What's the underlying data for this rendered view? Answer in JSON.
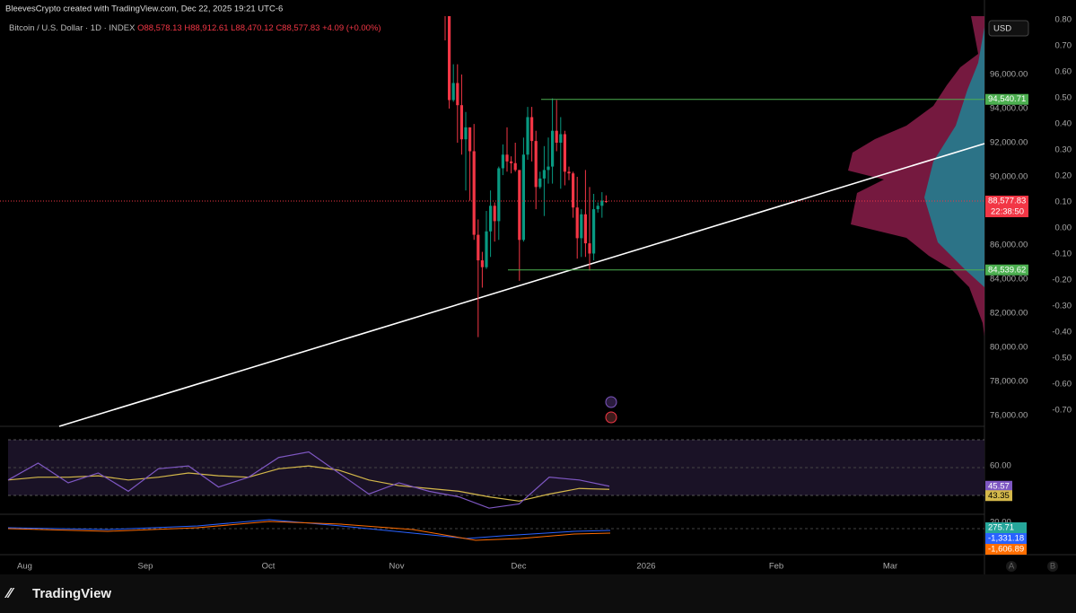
{
  "header": {
    "credit": "BleevesCrypto created with TradingView.com, Dec 22, 2025 19:21 UTC-6",
    "symbol": "Bitcoin / U.S. Dollar · 1D · INDEX",
    "open": "O88,578.13",
    "high": "H88,912.61",
    "low": "L88,470.12",
    "close": "C88,577.83",
    "change": "+4.09 (+0.00%)"
  },
  "currency_button": "USD",
  "footer": {
    "brand": "TradingView",
    "scale_a": "A",
    "scale_b": "B"
  },
  "chart_data": {
    "type": "candlestick",
    "ylim": [
      75368,
      99421
    ],
    "yticks": [
      {
        "value": 96000,
        "label": "96,000.00"
      },
      {
        "value": 94000,
        "label": "94,000.00"
      },
      {
        "value": 92000,
        "label": "92,000.00"
      },
      {
        "value": 90000,
        "label": "90,000.00"
      },
      {
        "value": 88000,
        "label": "88,000.00"
      },
      {
        "value": 86000,
        "label": "86,000.00"
      },
      {
        "value": 84000,
        "label": "84,000.00"
      },
      {
        "value": 82000,
        "label": "82,000.00"
      },
      {
        "value": 80000,
        "label": "80,000.00"
      },
      {
        "value": 78000,
        "label": "78,000.00"
      },
      {
        "value": 76000,
        "label": "76,000.00"
      }
    ],
    "y2lim": [
      0.814,
      -0.762
    ],
    "y2ticks": [
      {
        "value": 0.8,
        "label": "0.80"
      },
      {
        "value": 0.7,
        "label": "0.70"
      },
      {
        "value": 0.6,
        "label": "0.60"
      },
      {
        "value": 0.5,
        "label": "0.50"
      },
      {
        "value": 0.4,
        "label": "0.40"
      },
      {
        "value": 0.3,
        "label": "0.30"
      },
      {
        "value": 0.2,
        "label": "0.20"
      },
      {
        "value": 0.1,
        "label": "0.10"
      },
      {
        "value": 0,
        "label": "0.00"
      },
      {
        "value": -0.1,
        "label": "-0.10"
      },
      {
        "value": -0.2,
        "label": "-0.20"
      },
      {
        "value": -0.3,
        "label": "-0.30"
      },
      {
        "value": -0.4,
        "label": "-0.40"
      },
      {
        "value": -0.5,
        "label": "-0.50"
      },
      {
        "value": -0.6,
        "label": "-0.60"
      },
      {
        "value": -0.7,
        "label": "-0.70"
      }
    ],
    "x_labels": [
      "Aug",
      "Sep",
      "Oct",
      "Nov",
      "Dec",
      "2026",
      "Feb",
      "Mar"
    ],
    "open": [
      101600,
      99700,
      94500,
      95500,
      94200,
      92200,
      92900,
      91500,
      86600,
      85100,
      84700,
      86800,
      88300,
      87400,
      90500,
      91300,
      90900,
      90800,
      90400,
      86300,
      91300,
      93500,
      92100,
      89400,
      89900,
      90400,
      90600,
      92700,
      92000,
      92500,
      90300,
      90200,
      88200,
      86400,
      87800,
      86100,
      85500,
      88100,
      88300,
      88578.13
    ],
    "high": [
      104000,
      99900,
      96600,
      96600,
      96000,
      93800,
      92900,
      93100,
      87500,
      85600,
      88000,
      89200,
      88500,
      90600,
      91900,
      92900,
      91200,
      92000,
      90400,
      92300,
      94100,
      94100,
      92700,
      90300,
      91800,
      92300,
      94600,
      94500,
      93500,
      92700,
      90600,
      90300,
      90000,
      88100,
      90400,
      89400,
      89000,
      88500,
      89100,
      88912.61
    ],
    "low": [
      98000,
      94000,
      94400,
      92000,
      91300,
      89200,
      88600,
      86300,
      80600,
      83500,
      84600,
      85300,
      86200,
      86300,
      90100,
      90300,
      90200,
      90300,
      83900,
      86200,
      91000,
      90900,
      88100,
      89300,
      87700,
      89600,
      89600,
      91500,
      89300,
      89500,
      89800,
      87600,
      85200,
      85300,
      85300,
      84500,
      85100,
      87900,
      87600,
      88470.12
    ],
    "close": [
      99700,
      94500,
      95500,
      94200,
      92200,
      92900,
      91500,
      86600,
      85100,
      84700,
      86800,
      88300,
      87400,
      90500,
      91300,
      90900,
      90800,
      90400,
      86300,
      91300,
      93500,
      92100,
      89400,
      89900,
      90400,
      90600,
      92700,
      92000,
      92500,
      90300,
      90200,
      88200,
      86400,
      87800,
      86100,
      85500,
      88100,
      88300,
      88600,
      88577.83
    ],
    "up_color": "#089981",
    "down_color": "#f23645",
    "levels": [
      {
        "value": 94540.71,
        "label": "94,540.71",
        "color": "#4caf50"
      },
      {
        "value": 88577.83,
        "label": "88,577.83",
        "sublabel": "22:38:50",
        "color": "#f23645"
      },
      {
        "value": 84539.62,
        "label": "84,539.62",
        "color": "#4caf50"
      }
    ],
    "rsi": {
      "ylim": [
        78.6,
        16.7
      ],
      "yticks": [
        {
          "value": 60,
          "label": "60.00"
        },
        {
          "value": 20,
          "label": "20.00"
        }
      ],
      "values": [
        50,
        62,
        48,
        55,
        42,
        58,
        60,
        45,
        52,
        66,
        70,
        55,
        40,
        48,
        42,
        38,
        30,
        33,
        52,
        50,
        45.57
      ],
      "ma": [
        50,
        52,
        52,
        53,
        50,
        52,
        55,
        53,
        52,
        58,
        60,
        57,
        50,
        46,
        44,
        42,
        38,
        35,
        40,
        44,
        43.35
      ],
      "value_label": "45.57",
      "ma_label": "43.35",
      "color": "#7e57c2",
      "ma_color": "#d4b84a"
    },
    "macd": {
      "histogram_label": "275.71",
      "macd_label": "-1,331.18",
      "signal_label": "-1,606.89"
    }
  }
}
